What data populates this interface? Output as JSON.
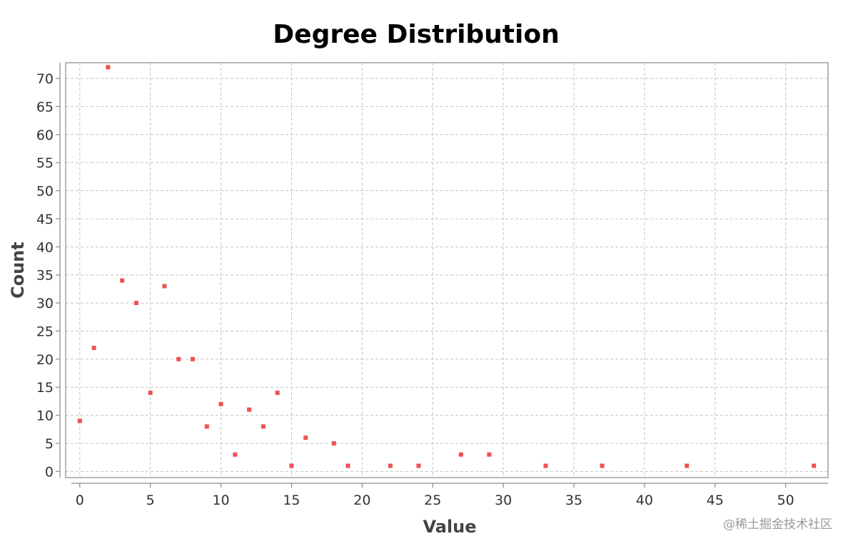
{
  "chart_data": {
    "type": "scatter",
    "title": "Degree Distribution",
    "xlabel": "Value",
    "ylabel": "Count",
    "xlim": [
      -1,
      53
    ],
    "ylim": [
      -1.1,
      72.8
    ],
    "xticks": [
      0,
      5,
      10,
      15,
      20,
      25,
      30,
      35,
      40,
      45,
      50
    ],
    "yticks": [
      0,
      5,
      10,
      15,
      20,
      25,
      30,
      35,
      40,
      45,
      50,
      55,
      60,
      65,
      70
    ],
    "grid": true,
    "marker_color": "#f05050",
    "series": [
      {
        "points": [
          {
            "x": 0,
            "y": 9
          },
          {
            "x": 1,
            "y": 22
          },
          {
            "x": 2,
            "y": 72
          },
          {
            "x": 3,
            "y": 34
          },
          {
            "x": 4,
            "y": 30
          },
          {
            "x": 5,
            "y": 14
          },
          {
            "x": 6,
            "y": 33
          },
          {
            "x": 7,
            "y": 20
          },
          {
            "x": 8,
            "y": 20
          },
          {
            "x": 9,
            "y": 8
          },
          {
            "x": 10,
            "y": 12
          },
          {
            "x": 11,
            "y": 3
          },
          {
            "x": 12,
            "y": 11
          },
          {
            "x": 13,
            "y": 8
          },
          {
            "x": 14,
            "y": 14
          },
          {
            "x": 15,
            "y": 1
          },
          {
            "x": 16,
            "y": 6
          },
          {
            "x": 18,
            "y": 5
          },
          {
            "x": 19,
            "y": 1
          },
          {
            "x": 22,
            "y": 1
          },
          {
            "x": 24,
            "y": 1
          },
          {
            "x": 27,
            "y": 3
          },
          {
            "x": 29,
            "y": 3
          },
          {
            "x": 33,
            "y": 1
          },
          {
            "x": 37,
            "y": 1
          },
          {
            "x": 43,
            "y": 1
          },
          {
            "x": 52,
            "y": 1
          }
        ]
      }
    ]
  },
  "watermark": "@稀土掘金技术社区"
}
